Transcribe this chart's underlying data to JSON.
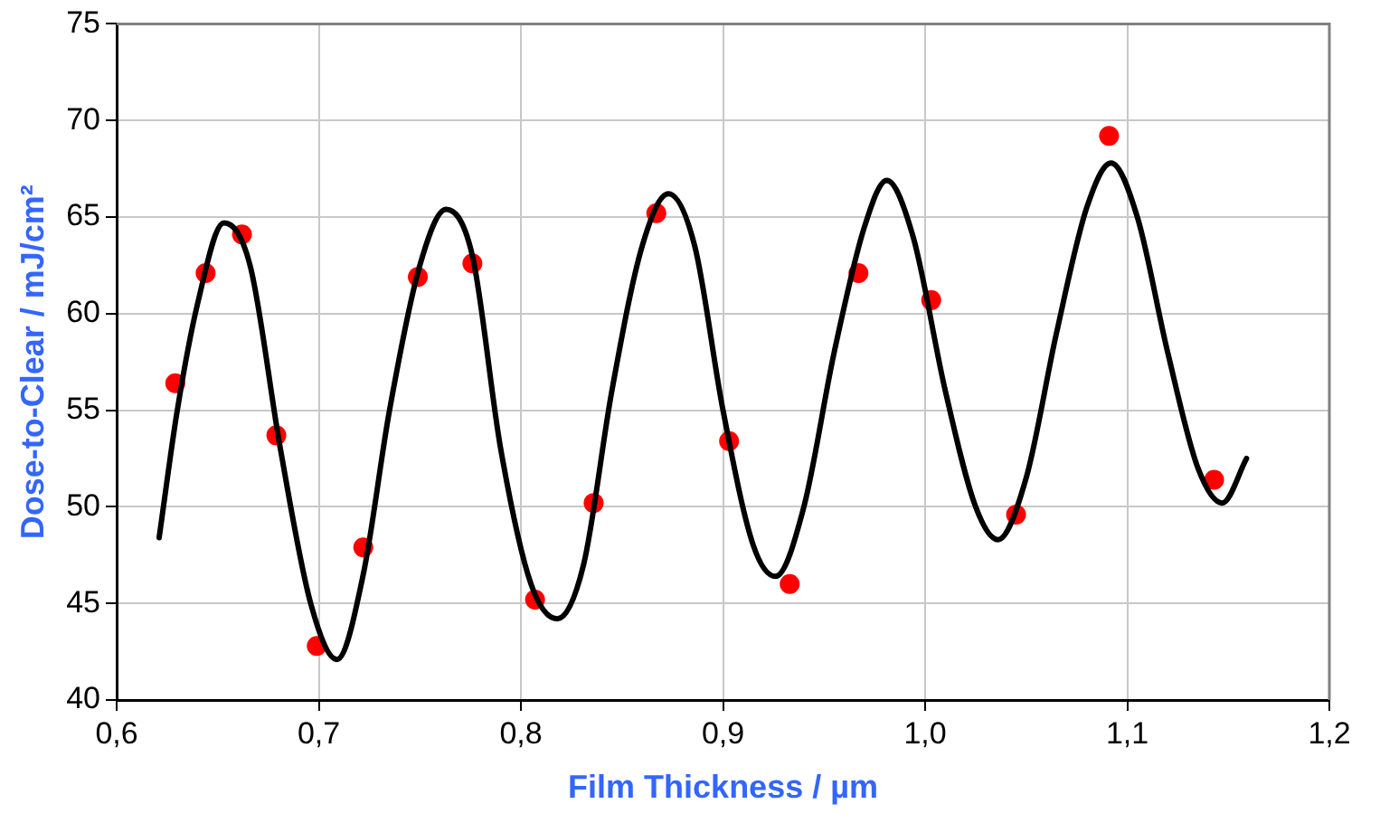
{
  "chart_data": {
    "type": "scatter",
    "xlabel": "Film Thickness / µm",
    "ylabel": "Dose-to-Clear / mJ/cm²",
    "xlim": [
      0.6,
      1.2
    ],
    "xticks": [
      {
        "value": 0.6,
        "label": "0,6"
      },
      {
        "value": 0.7,
        "label": "0,7"
      },
      {
        "value": 0.8,
        "label": "0,8"
      },
      {
        "value": 0.9,
        "label": "0,9"
      },
      {
        "value": 1.0,
        "label": "1,0"
      },
      {
        "value": 1.1,
        "label": "1,1"
      },
      {
        "value": 1.2,
        "label": "1,2"
      }
    ],
    "ylim": [
      40,
      75
    ],
    "yticks": [
      40,
      45,
      50,
      55,
      60,
      65,
      70,
      75
    ],
    "grid": true,
    "legend": false,
    "series": [
      {
        "type": "line",
        "color": "#000000",
        "marker": "none",
        "line_style": "solid",
        "x": [
          0.621,
          0.63,
          0.64,
          0.653,
          0.666,
          0.681,
          0.696,
          0.709,
          0.722,
          0.735,
          0.75,
          0.763,
          0.776,
          0.79,
          0.805,
          0.818,
          0.831,
          0.845,
          0.86,
          0.873,
          0.886,
          0.9,
          0.915,
          0.926,
          0.94,
          0.955,
          0.97,
          0.981,
          0.994,
          1.01,
          1.025,
          1.036,
          1.05,
          1.065,
          1.08,
          1.092,
          1.105,
          1.12,
          1.135,
          1.147,
          1.159
        ],
        "values": [
          48.4,
          55,
          60.5,
          64.7,
          62.5,
          53,
          45,
          42.1,
          46.5,
          55,
          62.5,
          65.4,
          63,
          53,
          46,
          44.2,
          47,
          56,
          63.5,
          66.2,
          63.5,
          55,
          48,
          46.4,
          50,
          58,
          64.5,
          66.9,
          64,
          56,
          50,
          48.3,
          51.5,
          59,
          65.5,
          67.8,
          65,
          58,
          52,
          50.2,
          52.5
        ]
      },
      {
        "color": "#ff0000",
        "marker": "circle",
        "x": [
          0.629,
          0.644,
          0.662,
          0.679,
          0.699,
          0.722,
          0.749,
          0.776,
          0.807,
          0.836,
          0.867,
          0.903,
          0.933,
          0.967,
          1.003,
          1.045,
          1.091,
          1.143
        ],
        "values": [
          56.4,
          62.1,
          64.1,
          53.7,
          42.8,
          47.9,
          61.9,
          62.6,
          45.2,
          50.2,
          65.2,
          53.4,
          46.0,
          62.1,
          60.7,
          49.6,
          69.2,
          51.4
        ]
      }
    ]
  }
}
